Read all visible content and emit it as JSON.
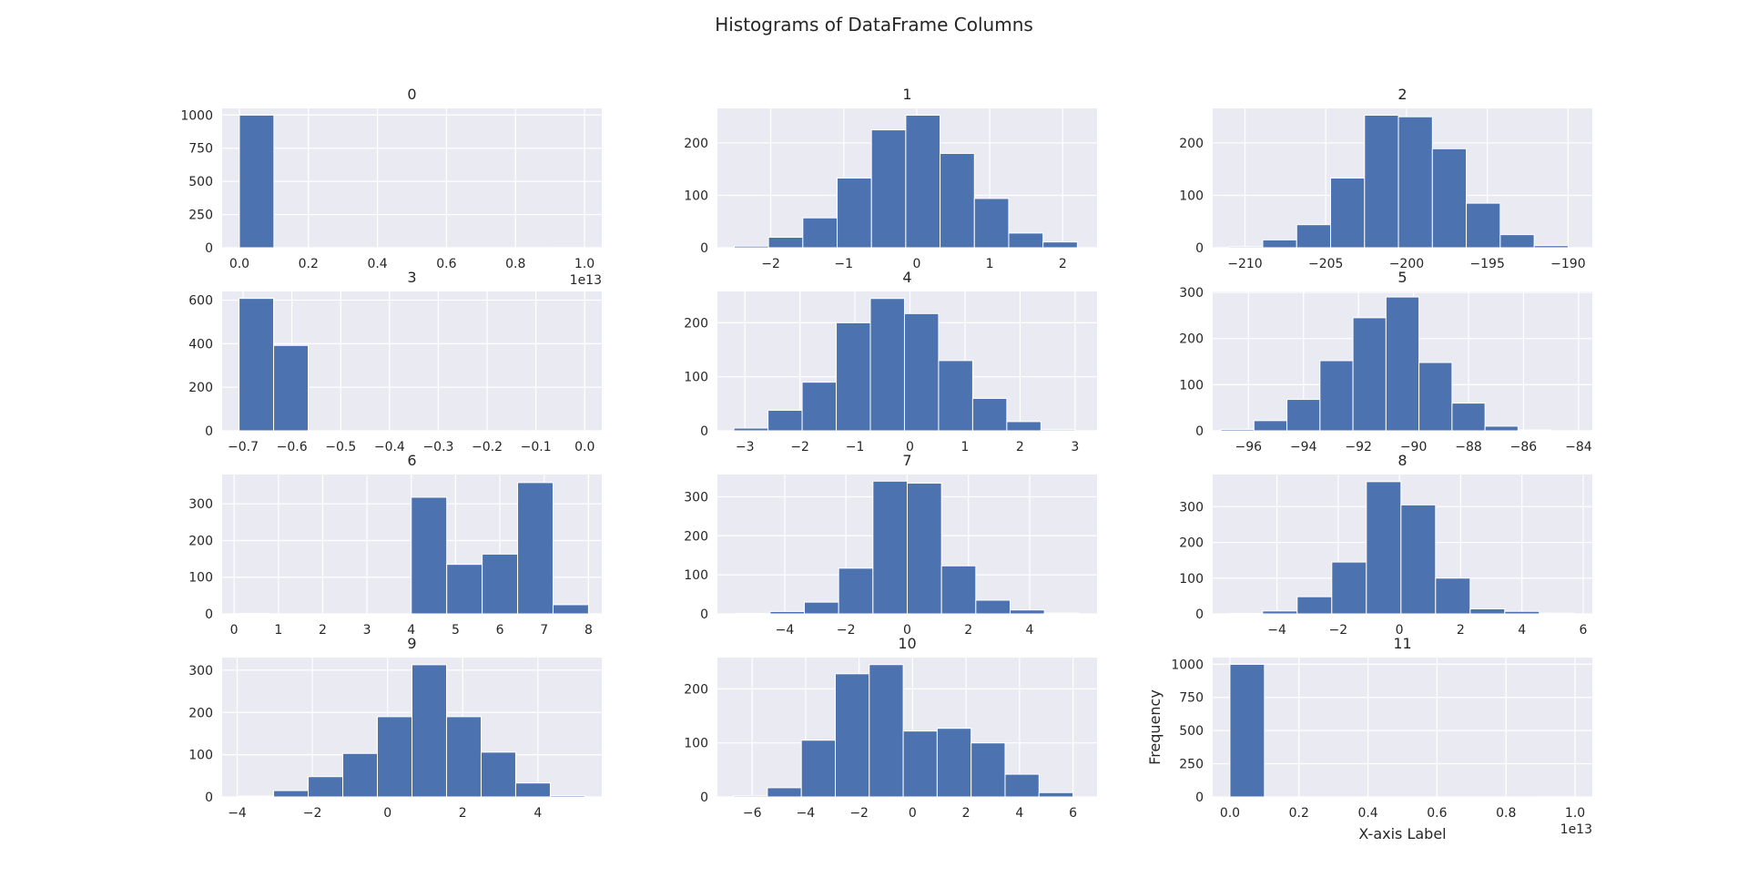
{
  "figure": {
    "title": "Histograms of DataFrame Columns",
    "style": {
      "background": "#ffffff",
      "plot_bg": "#eaeaf2",
      "grid": "#ffffff",
      "bar": "#4c72b0",
      "text": "#262626"
    }
  },
  "chart_data": [
    {
      "type": "bar",
      "title": "0",
      "xlabel": "",
      "ylabel": "",
      "xlim": [
        -0.05,
        1.05
      ],
      "ylim": [
        0,
        1050
      ],
      "xticks": [
        0.0,
        0.2,
        0.4,
        0.6,
        0.8,
        1.0
      ],
      "xticklabels": [
        "0.0",
        "0.2",
        "0.4",
        "0.6",
        "0.8",
        "1.0"
      ],
      "yticks": [
        0,
        250,
        500,
        750,
        1000
      ],
      "yticklabels": [
        "0",
        "250",
        "500",
        "750",
        "1000"
      ],
      "offset_text": "1e13",
      "bin_edges": [
        0.0,
        0.1,
        0.2,
        0.3,
        0.4,
        0.5,
        0.6,
        0.7,
        0.8,
        0.9,
        1.0
      ],
      "values": [
        999,
        0,
        0,
        0,
        0,
        0,
        0,
        0,
        0,
        1
      ]
    },
    {
      "type": "bar",
      "title": "1",
      "xlabel": "",
      "ylabel": "",
      "xlim": [
        -2.73,
        2.47
      ],
      "ylim": [
        0,
        266
      ],
      "xticks": [
        -2,
        -1,
        0,
        1,
        2
      ],
      "xticklabels": [
        "−2",
        "−1",
        "0",
        "1",
        "2"
      ],
      "yticks": [
        0,
        100,
        200
      ],
      "yticklabels": [
        "0",
        "100",
        "200"
      ],
      "bin_edges": [
        -2.5,
        -2.03,
        -1.56,
        -1.09,
        -0.62,
        -0.15,
        0.32,
        0.79,
        1.26,
        1.73,
        2.2
      ],
      "values": [
        3,
        20,
        57,
        133,
        225,
        253,
        180,
        94,
        28,
        11
      ]
    },
    {
      "type": "bar",
      "title": "2",
      "xlabel": "",
      "ylabel": "",
      "xlim": [
        -212,
        -188.5
      ],
      "ylim": [
        0,
        266
      ],
      "xticks": [
        -210,
        -205,
        -200,
        -195,
        -190
      ],
      "xticklabels": [
        "−210",
        "−205",
        "−200",
        "−195",
        "−190"
      ],
      "yticks": [
        0,
        100,
        200
      ],
      "yticklabels": [
        "0",
        "100",
        "200"
      ],
      "bin_edges": [
        -211,
        -208.9,
        -206.8,
        -204.7,
        -202.6,
        -200.5,
        -198.4,
        -196.3,
        -194.2,
        -192.1,
        -190
      ],
      "values": [
        2,
        15,
        44,
        133,
        253,
        250,
        189,
        85,
        25,
        4
      ]
    },
    {
      "type": "bar",
      "title": "3",
      "xlabel": "",
      "ylabel": "",
      "xlim": [
        -0.743,
        0.035
      ],
      "ylim": [
        0,
        640
      ],
      "xticks": [
        -0.7,
        -0.6,
        -0.5,
        -0.4,
        -0.3,
        -0.2,
        -0.1,
        0.0
      ],
      "xticklabels": [
        "−0.7",
        "−0.6",
        "−0.5",
        "−0.4",
        "−0.3",
        "−0.2",
        "−0.1",
        "0.0"
      ],
      "yticks": [
        0,
        200,
        400,
        600
      ],
      "yticklabels": [
        "0",
        "200",
        "400",
        "600"
      ],
      "bin_edges": [
        -0.7083,
        -0.6375,
        -0.5667,
        -0.4958,
        -0.425,
        -0.3542,
        -0.2833,
        -0.2125,
        -0.1417,
        -0.0708,
        0.0
      ],
      "values": [
        608,
        392,
        0,
        0,
        0,
        0,
        0,
        0,
        0,
        0
      ]
    },
    {
      "type": "bar",
      "title": "4",
      "xlabel": "",
      "ylabel": "",
      "xlim": [
        -3.5,
        3.4
      ],
      "ylim": [
        0,
        258
      ],
      "xticks": [
        -3,
        -2,
        -1,
        0,
        1,
        2,
        3
      ],
      "xticklabels": [
        "−3",
        "−2",
        "−1",
        "0",
        "1",
        "2",
        "3"
      ],
      "yticks": [
        0,
        100,
        200
      ],
      "yticklabels": [
        "0",
        "100",
        "200"
      ],
      "bin_edges": [
        -3.2,
        -2.58,
        -1.96,
        -1.34,
        -0.72,
        -0.1,
        0.52,
        1.14,
        1.76,
        2.38,
        3.0
      ],
      "values": [
        5,
        38,
        90,
        200,
        245,
        217,
        130,
        60,
        17,
        2
      ]
    },
    {
      "type": "bar",
      "title": "5",
      "xlabel": "",
      "ylabel": "",
      "xlim": [
        -97.3,
        -83.5
      ],
      "ylim": [
        0,
        302
      ],
      "xticks": [
        -96,
        -94,
        -92,
        -90,
        -88,
        -86,
        -84
      ],
      "xticklabels": [
        "−96",
        "−94",
        "−92",
        "−90",
        "−88",
        "−86",
        "−84"
      ],
      "yticks": [
        0,
        100,
        200,
        300
      ],
      "yticklabels": [
        "0",
        "100",
        "200",
        "300"
      ],
      "bin_edges": [
        -97,
        -95.8,
        -94.6,
        -93.4,
        -92.2,
        -91.0,
        -89.8,
        -88.6,
        -87.4,
        -86.2,
        -85
      ],
      "values": [
        3,
        22,
        68,
        152,
        245,
        290,
        148,
        60,
        10,
        2
      ]
    },
    {
      "type": "bar",
      "title": "6",
      "xlabel": "",
      "ylabel": "",
      "xlim": [
        -0.27,
        8.3
      ],
      "ylim": [
        0,
        380
      ],
      "xticks": [
        0,
        1,
        2,
        3,
        4,
        5,
        6,
        7,
        8
      ],
      "xticklabels": [
        "0",
        "1",
        "2",
        "3",
        "4",
        "5",
        "6",
        "7",
        "8"
      ],
      "yticks": [
        0,
        100,
        200,
        300
      ],
      "yticklabels": [
        "0",
        "100",
        "200",
        "300"
      ],
      "bin_edges": [
        0.0,
        0.8,
        1.6,
        2.4,
        3.2,
        4.0,
        4.8,
        5.6,
        6.4,
        7.2,
        8.0
      ],
      "values": [
        1,
        0,
        0,
        0,
        0,
        318,
        135,
        163,
        358,
        25
      ]
    },
    {
      "type": "bar",
      "title": "7",
      "xlabel": "",
      "ylabel": "",
      "xlim": [
        -6.2,
        6.2
      ],
      "ylim": [
        0,
        357
      ],
      "xticks": [
        -4,
        -2,
        0,
        2,
        4
      ],
      "xticklabels": [
        "−4",
        "−2",
        "0",
        "2",
        "4"
      ],
      "yticks": [
        0,
        100,
        200,
        300
      ],
      "yticklabels": [
        "0",
        "100",
        "200",
        "300"
      ],
      "bin_edges": [
        -5.6,
        -4.48,
        -3.36,
        -2.24,
        -1.12,
        0.0,
        1.12,
        2.24,
        3.36,
        4.48,
        5.6
      ],
      "values": [
        1,
        6,
        30,
        117,
        340,
        335,
        123,
        35,
        10,
        2
      ]
    },
    {
      "type": "bar",
      "title": "8",
      "xlabel": "",
      "ylabel": "",
      "xlim": [
        -6.1,
        6.3
      ],
      "ylim": [
        0,
        390
      ],
      "xticks": [
        -4,
        -2,
        0,
        2,
        4,
        6
      ],
      "xticklabels": [
        "−4",
        "−2",
        "0",
        "2",
        "4",
        "6"
      ],
      "yticks": [
        0,
        100,
        200,
        300
      ],
      "yticklabels": [
        "0",
        "100",
        "200",
        "300"
      ],
      "bin_edges": [
        -5.6,
        -4.47,
        -3.34,
        -2.21,
        -1.08,
        0.05,
        1.18,
        2.31,
        3.44,
        4.57,
        5.7
      ],
      "values": [
        1,
        8,
        48,
        145,
        370,
        305,
        100,
        14,
        7,
        2
      ]
    },
    {
      "type": "bar",
      "title": "9",
      "xlabel": "",
      "ylabel": "",
      "xlim": [
        -4.4,
        5.7
      ],
      "ylim": [
        0,
        330
      ],
      "xticks": [
        -4,
        -2,
        0,
        2,
        4
      ],
      "xticklabels": [
        "−4",
        "−2",
        "0",
        "2",
        "4"
      ],
      "yticks": [
        0,
        100,
        200,
        300
      ],
      "yticklabels": [
        "0",
        "100",
        "200",
        "300"
      ],
      "bin_edges": [
        -3.95,
        -3.03,
        -2.11,
        -1.19,
        -0.27,
        0.65,
        1.57,
        2.49,
        3.41,
        4.33,
        5.25
      ],
      "values": [
        2,
        15,
        48,
        103,
        190,
        313,
        190,
        106,
        33,
        3
      ]
    },
    {
      "type": "bar",
      "title": "10",
      "xlabel": "",
      "ylabel": "",
      "xlim": [
        -7.3,
        6.9
      ],
      "ylim": [
        0,
        258
      ],
      "xticks": [
        -6,
        -4,
        -2,
        0,
        2,
        4,
        6
      ],
      "xticklabels": [
        "−6",
        "−4",
        "−2",
        "0",
        "2",
        "4",
        "6"
      ],
      "yticks": [
        0,
        100,
        200
      ],
      "yticklabels": [
        "0",
        "100",
        "200"
      ],
      "bin_edges": [
        -6.7,
        -5.43,
        -4.16,
        -2.89,
        -1.62,
        -0.35,
        0.92,
        2.19,
        3.46,
        4.73,
        6.0
      ],
      "values": [
        2,
        17,
        105,
        228,
        245,
        122,
        127,
        100,
        42,
        8
      ]
    },
    {
      "type": "bar",
      "title": "11",
      "xlabel": "X-axis Label",
      "ylabel": "Frequency",
      "xlim": [
        -0.05,
        1.05
      ],
      "ylim": [
        0,
        1050
      ],
      "xticks": [
        0.0,
        0.2,
        0.4,
        0.6,
        0.8,
        1.0
      ],
      "xticklabels": [
        "0.0",
        "0.2",
        "0.4",
        "0.6",
        "0.8",
        "1.0"
      ],
      "yticks": [
        0,
        250,
        500,
        750,
        1000
      ],
      "yticklabels": [
        "0",
        "250",
        "500",
        "750",
        "1000"
      ],
      "offset_text": "1e13",
      "bin_edges": [
        0.0,
        0.1,
        0.2,
        0.3,
        0.4,
        0.5,
        0.6,
        0.7,
        0.8,
        0.9,
        1.0
      ],
      "values": [
        999,
        0,
        0,
        0,
        0,
        0,
        0,
        0,
        0,
        1
      ]
    }
  ]
}
